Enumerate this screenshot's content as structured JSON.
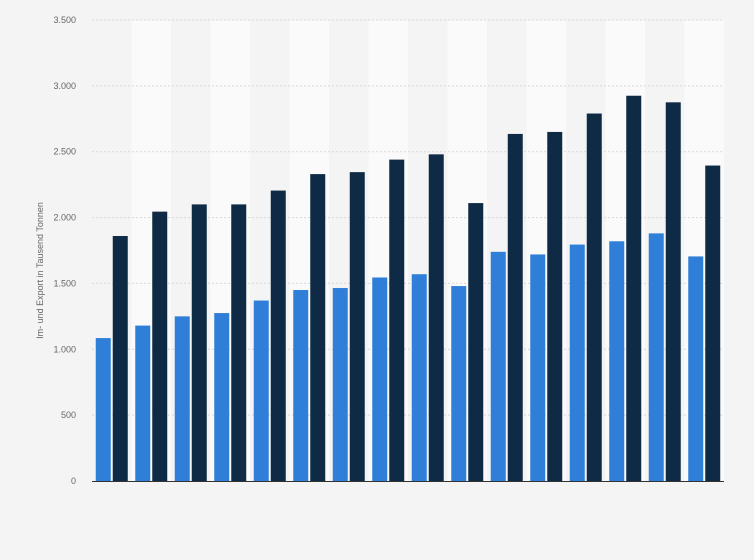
{
  "chart_data": {
    "type": "bar",
    "title": "",
    "xlabel": "",
    "ylabel": "Im- und Export in Tausend Tonnen",
    "ylim": [
      0,
      3500
    ],
    "yticks": [
      0,
      500,
      1000,
      1500,
      2000,
      2500,
      3000,
      3500
    ],
    "ytick_labels": [
      "0",
      "500",
      "1.000",
      "1.500",
      "2.000",
      "2.500",
      "3.000",
      "3.500"
    ],
    "grid": true,
    "legend": "none",
    "categories": [
      "",
      "",
      "",
      "",
      "",
      "",
      "",
      "",
      "",
      "",
      "",
      "",
      "",
      "",
      "",
      ""
    ],
    "series": [
      {
        "color": "#2f7ed8",
        "values": [
          1085,
          1180,
          1250,
          1275,
          1370,
          1450,
          1465,
          1545,
          1570,
          1480,
          1740,
          1720,
          1795,
          1820,
          1880,
          1705
        ]
      },
      {
        "color": "#0f2a45",
        "values": [
          1860,
          2045,
          2100,
          2100,
          2205,
          2330,
          2345,
          2440,
          2480,
          2110,
          2635,
          2650,
          2790,
          2925,
          2875,
          2395
        ]
      }
    ]
  }
}
